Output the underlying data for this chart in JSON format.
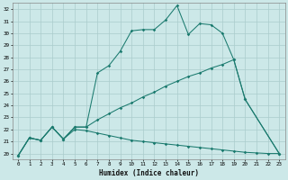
{
  "xlabel": "Humidex (Indice chaleur)",
  "bg_color": "#cce8e8",
  "line_color": "#1a7a6e",
  "grid_color": "#aacccc",
  "xlim": [
    -0.5,
    23.5
  ],
  "ylim": [
    19.5,
    32.5
  ],
  "yticks": [
    20,
    21,
    22,
    23,
    24,
    25,
    26,
    27,
    28,
    29,
    30,
    31,
    32
  ],
  "xticks": [
    0,
    1,
    2,
    3,
    4,
    5,
    6,
    7,
    8,
    9,
    10,
    11,
    12,
    13,
    14,
    15,
    16,
    17,
    18,
    19,
    20,
    21,
    22,
    23
  ],
  "curve1_x": [
    0,
    1,
    2,
    3,
    4,
    5,
    6,
    7,
    8,
    9,
    10,
    11,
    12,
    13,
    14,
    15,
    16,
    17,
    18,
    19,
    20,
    23
  ],
  "curve1_y": [
    19.8,
    21.3,
    21.1,
    22.2,
    21.2,
    22.2,
    22.2,
    26.7,
    27.3,
    28.5,
    30.2,
    30.3,
    30.3,
    31.1,
    32.3,
    29.9,
    30.8,
    30.7,
    30.0,
    27.8,
    24.5,
    20.0
  ],
  "curve2_x": [
    0,
    1,
    2,
    3,
    4,
    5,
    6,
    7,
    8,
    9,
    10,
    11,
    12,
    13,
    14,
    15,
    16,
    17,
    18,
    19,
    20,
    23
  ],
  "curve2_y": [
    19.8,
    21.3,
    21.1,
    22.2,
    21.2,
    22.2,
    22.2,
    22.8,
    23.3,
    23.8,
    24.2,
    24.7,
    25.1,
    25.6,
    26.0,
    26.4,
    26.7,
    27.1,
    27.4,
    27.8,
    24.5,
    20.0
  ],
  "curve3_x": [
    0,
    1,
    2,
    3,
    4,
    5,
    6,
    7,
    8,
    9,
    10,
    11,
    12,
    13,
    14,
    15,
    16,
    17,
    18,
    19,
    20,
    21,
    22,
    23
  ],
  "curve3_y": [
    19.8,
    21.3,
    21.1,
    22.2,
    21.2,
    22.0,
    21.9,
    21.7,
    21.5,
    21.3,
    21.1,
    21.0,
    20.9,
    20.8,
    20.7,
    20.6,
    20.5,
    20.4,
    20.3,
    20.2,
    20.1,
    20.05,
    20.0,
    20.0
  ]
}
